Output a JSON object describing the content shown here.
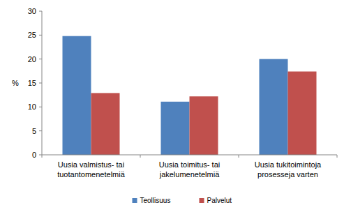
{
  "chart_data": {
    "type": "bar",
    "y_label": "%",
    "categories": [
      "Uusia valmistus- tai\ntuotantomenetelmiä",
      "Uusia toimitus- tai\njakelumenetelmiä",
      "Uusia tukitoimintoja\nprosesseja varten"
    ],
    "series": [
      {
        "name": "Teollisuus",
        "color": "#4f81bd",
        "values": [
          24.8,
          11.1,
          20.0
        ]
      },
      {
        "name": "Palvelut",
        "color": "#c0504d",
        "values": [
          12.9,
          12.2,
          17.4
        ]
      }
    ],
    "ylim": [
      0,
      30
    ],
    "yticks": [
      0,
      5,
      10,
      15,
      20,
      25,
      30
    ],
    "grid": false,
    "legend": "bottom"
  }
}
